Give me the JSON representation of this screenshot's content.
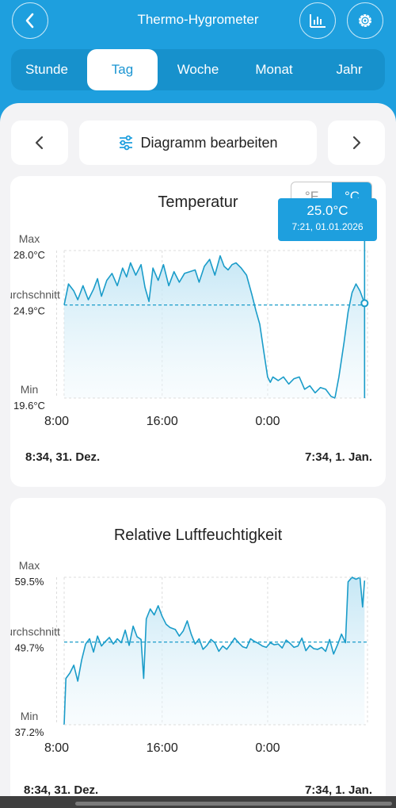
{
  "header": {
    "title": "Thermo-Hygrometer",
    "back_icon": "chevron-left-icon",
    "chart_icon": "bar-chart-icon",
    "settings_icon": "gear-icon"
  },
  "tabs": [
    {
      "label": "Stunde",
      "active": false
    },
    {
      "label": "Tag",
      "active": true
    },
    {
      "label": "Woche",
      "active": false
    },
    {
      "label": "Monat",
      "active": false
    },
    {
      "label": "Jahr",
      "active": false
    }
  ],
  "toolbar": {
    "edit_label": "Diagramm bearbeiten",
    "prev_icon": "chevron-left-icon",
    "next_icon": "chevron-right-icon",
    "edit_icon": "sliders-icon"
  },
  "colors": {
    "accent": "#1e9fde",
    "line": "#1a9cc9",
    "background": "#f3f3f5"
  },
  "temperature": {
    "title": "Temperatur",
    "unit_f": "°F",
    "unit_c": "°C",
    "selected_unit": "°C",
    "tooltip_value": "25.0°C",
    "tooltip_time": "7:21,  01.01.2026",
    "start_label": "8:34,  31. Dez.",
    "end_label": "7:34,  1. Jan."
  },
  "humidity": {
    "title": "Relative Luftfeuchtigkeit",
    "start_label": "8:34,  31. Dez.",
    "end_label": "7:34,  1. Jan."
  },
  "chart_data": [
    {
      "type": "area",
      "title": "Temperatur",
      "x_ticks": [
        "8:00",
        "16:00",
        "0:00"
      ],
      "x_tick_hours": [
        8,
        16,
        24
      ],
      "x_range": [
        8.57,
        31.57
      ],
      "y_range": [
        19.6,
        28.0
      ],
      "reference_lines": [
        {
          "label": "Max",
          "value": 28.0,
          "text": "28.0°C"
        },
        {
          "label": "Durchschnitt",
          "value": 24.9,
          "text": "24.9°C"
        },
        {
          "label": "Min",
          "value": 19.6,
          "text": "19.6°C"
        }
      ],
      "cursor": {
        "x": 31.35,
        "y": 25.0
      },
      "series": [
        {
          "points": [
            [
              8.57,
              24.9
            ],
            [
              8.9,
              26.1
            ],
            [
              9.3,
              25.7
            ],
            [
              9.6,
              25.2
            ],
            [
              10.0,
              26.0
            ],
            [
              10.4,
              25.2
            ],
            [
              10.8,
              25.8
            ],
            [
              11.1,
              26.4
            ],
            [
              11.4,
              25.4
            ],
            [
              11.8,
              26.3
            ],
            [
              12.2,
              26.7
            ],
            [
              12.6,
              26.0
            ],
            [
              13.0,
              27.0
            ],
            [
              13.3,
              26.5
            ],
            [
              13.6,
              27.3
            ],
            [
              14.0,
              26.6
            ],
            [
              14.4,
              27.2
            ],
            [
              14.7,
              25.9
            ],
            [
              15.0,
              25.1
            ],
            [
              15.3,
              27.0
            ],
            [
              15.7,
              26.3
            ],
            [
              16.1,
              27.2
            ],
            [
              16.5,
              26.0
            ],
            [
              16.9,
              26.8
            ],
            [
              17.3,
              26.2
            ],
            [
              17.7,
              26.7
            ],
            [
              18.1,
              26.8
            ],
            [
              18.5,
              26.9
            ],
            [
              18.8,
              26.2
            ],
            [
              19.2,
              27.1
            ],
            [
              19.6,
              27.5
            ],
            [
              20.0,
              26.6
            ],
            [
              20.4,
              27.7
            ],
            [
              20.7,
              27.1
            ],
            [
              21.0,
              26.9
            ],
            [
              21.3,
              27.2
            ],
            [
              21.6,
              27.3
            ],
            [
              22.0,
              27.0
            ],
            [
              22.4,
              26.6
            ],
            [
              22.8,
              25.5
            ],
            [
              23.1,
              24.6
            ],
            [
              23.4,
              23.8
            ],
            [
              23.7,
              22.3
            ],
            [
              24.0,
              20.8
            ],
            [
              24.2,
              20.5
            ],
            [
              24.4,
              20.8
            ],
            [
              24.8,
              20.6
            ],
            [
              25.2,
              20.8
            ],
            [
              25.6,
              20.4
            ],
            [
              26.0,
              20.7
            ],
            [
              26.4,
              20.8
            ],
            [
              26.8,
              20.1
            ],
            [
              27.2,
              20.3
            ],
            [
              27.6,
              19.9
            ],
            [
              28.0,
              20.2
            ],
            [
              28.4,
              20.1
            ],
            [
              28.8,
              19.7
            ],
            [
              29.1,
              19.6
            ],
            [
              29.4,
              20.8
            ],
            [
              29.8,
              22.8
            ],
            [
              30.1,
              24.5
            ],
            [
              30.4,
              25.6
            ],
            [
              30.7,
              26.1
            ],
            [
              31.0,
              25.7
            ],
            [
              31.35,
              25.0
            ]
          ]
        }
      ]
    },
    {
      "type": "area",
      "title": "Relative Luftfeuchtigkeit",
      "x_ticks": [
        "8:00",
        "16:00",
        "0:00"
      ],
      "x_tick_hours": [
        8,
        16,
        24
      ],
      "x_range": [
        8.57,
        31.57
      ],
      "y_range": [
        37.2,
        59.5
      ],
      "reference_lines": [
        {
          "label": "Max",
          "value": 59.5,
          "text": "59.5%"
        },
        {
          "label": "Durchschnitt",
          "value": 49.7,
          "text": "49.7%"
        },
        {
          "label": "Min",
          "value": 37.2,
          "text": "37.2%"
        }
      ],
      "series": [
        {
          "points": [
            [
              8.57,
              37.2
            ],
            [
              8.7,
              44.2
            ],
            [
              9.0,
              45.0
            ],
            [
              9.3,
              46.2
            ],
            [
              9.6,
              43.8
            ],
            [
              9.9,
              47.0
            ],
            [
              10.2,
              49.4
            ],
            [
              10.5,
              50.2
            ],
            [
              10.8,
              48.2
            ],
            [
              11.1,
              50.6
            ],
            [
              11.4,
              49.1
            ],
            [
              11.7,
              49.8
            ],
            [
              12.0,
              50.4
            ],
            [
              12.3,
              49.4
            ],
            [
              12.6,
              50.2
            ],
            [
              12.9,
              49.6
            ],
            [
              13.2,
              51.5
            ],
            [
              13.5,
              49.2
            ],
            [
              13.8,
              52.1
            ],
            [
              14.1,
              50.5
            ],
            [
              14.4,
              50.1
            ],
            [
              14.6,
              44.2
            ],
            [
              14.8,
              53.2
            ],
            [
              15.1,
              54.7
            ],
            [
              15.4,
              53.8
            ],
            [
              15.7,
              55.2
            ],
            [
              16.0,
              53.6
            ],
            [
              16.3,
              52.4
            ],
            [
              16.6,
              51.9
            ],
            [
              17.0,
              51.6
            ],
            [
              17.3,
              50.6
            ],
            [
              17.6,
              51.4
            ],
            [
              17.9,
              52.9
            ],
            [
              18.2,
              50.9
            ],
            [
              18.5,
              49.4
            ],
            [
              18.8,
              50.2
            ],
            [
              19.1,
              48.6
            ],
            [
              19.4,
              49.2
            ],
            [
              19.7,
              50.1
            ],
            [
              20.0,
              49.6
            ],
            [
              20.3,
              48.3
            ],
            [
              20.6,
              49.1
            ],
            [
              20.9,
              48.6
            ],
            [
              21.2,
              49.4
            ],
            [
              21.5,
              50.3
            ],
            [
              21.8,
              49.6
            ],
            [
              22.1,
              49.0
            ],
            [
              22.4,
              48.8
            ],
            [
              22.7,
              50.2
            ],
            [
              23.0,
              49.8
            ],
            [
              23.3,
              49.5
            ],
            [
              23.6,
              49.1
            ],
            [
              23.9,
              48.9
            ],
            [
              24.2,
              49.6
            ],
            [
              24.5,
              49.3
            ],
            [
              24.8,
              49.4
            ],
            [
              25.1,
              48.8
            ],
            [
              25.4,
              50.0
            ],
            [
              25.7,
              49.5
            ],
            [
              26.0,
              48.9
            ],
            [
              26.3,
              49.1
            ],
            [
              26.6,
              50.3
            ],
            [
              26.9,
              48.4
            ],
            [
              27.2,
              49.2
            ],
            [
              27.5,
              48.7
            ],
            [
              27.8,
              48.6
            ],
            [
              28.1,
              48.9
            ],
            [
              28.4,
              48.3
            ],
            [
              28.7,
              50.1
            ],
            [
              29.0,
              47.9
            ],
            [
              29.3,
              49.3
            ],
            [
              29.6,
              50.9
            ],
            [
              29.9,
              49.6
            ],
            [
              30.1,
              58.8
            ],
            [
              30.4,
              59.5
            ],
            [
              30.7,
              59.2
            ],
            [
              31.0,
              59.5
            ],
            [
              31.2,
              55.0
            ],
            [
              31.35,
              59.0
            ]
          ]
        }
      ]
    }
  ]
}
